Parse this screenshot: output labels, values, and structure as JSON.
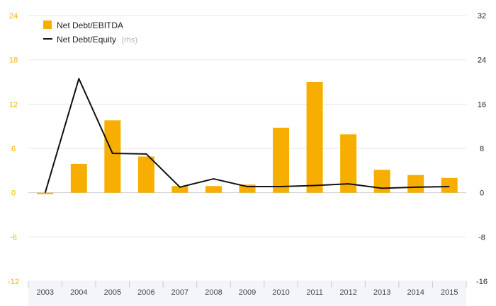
{
  "chart_data": {
    "type": "bar+line",
    "categories": [
      "2003",
      "2004",
      "2005",
      "2006",
      "2007",
      "2008",
      "2009",
      "2010",
      "2011",
      "2012",
      "2013",
      "2014",
      "2015"
    ],
    "series": [
      {
        "name": "Net Debt/EBITDA",
        "kind": "bar",
        "axis": "left",
        "color": "#f7ae00",
        "values": [
          -0.2,
          3.9,
          9.8,
          4.9,
          0.9,
          0.9,
          1.1,
          8.8,
          15.0,
          7.9,
          3.1,
          2.4,
          2.0
        ]
      },
      {
        "name": "Net Debt/Equity",
        "name_suffix": "(rhs)",
        "kind": "line",
        "axis": "right",
        "color": "#111111",
        "values": [
          0.0,
          20.6,
          7.1,
          7.0,
          1.0,
          2.5,
          1.1,
          1.1,
          1.3,
          1.6,
          0.8,
          1.0,
          1.1
        ]
      }
    ],
    "y_left": {
      "min": -12,
      "max": 24,
      "ticks": [
        "-12",
        "-6",
        "0",
        "6",
        "12",
        "18",
        "24"
      ],
      "color": "#f2b400"
    },
    "y_right": {
      "min": -16,
      "max": 32,
      "ticks": [
        "-16",
        "-8",
        "0",
        "8",
        "16",
        "24",
        "32"
      ]
    },
    "legend_position": "top-left",
    "grid": true
  }
}
